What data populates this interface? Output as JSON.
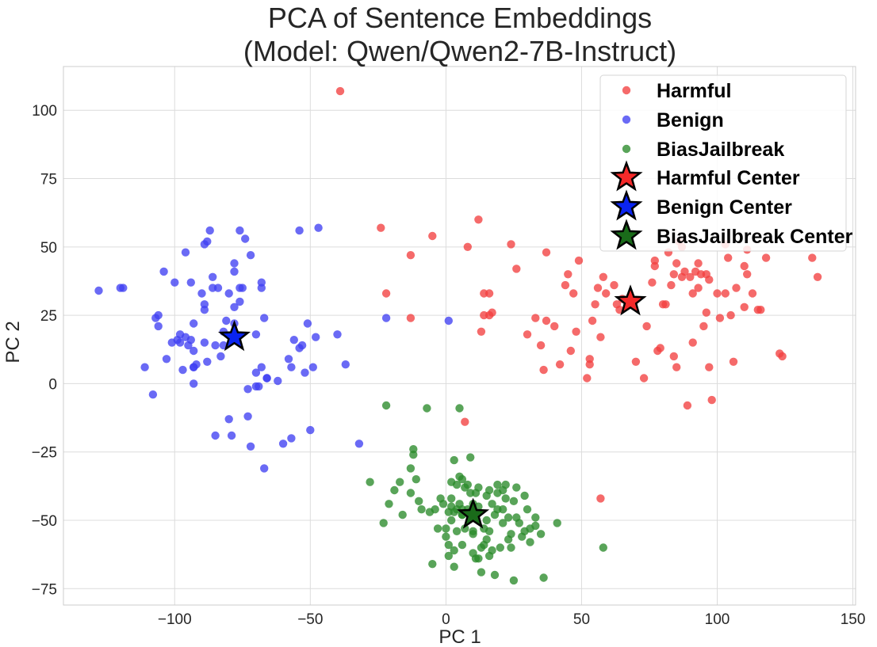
{
  "chart_data": {
    "type": "scatter",
    "title": [
      "PCA of Sentence Embeddings",
      "(Model: Qwen/Qwen2-7B-Instruct)"
    ],
    "xlabel": "PC 1",
    "ylabel": "PC 2",
    "xlim": [
      -141,
      151
    ],
    "ylim": [
      -81,
      116
    ],
    "xticks": [
      -100,
      -50,
      0,
      50,
      100,
      150
    ],
    "yticks": [
      -75,
      -50,
      -25,
      0,
      25,
      50,
      75,
      100
    ],
    "grid": true,
    "legend_position": "top-right",
    "series": [
      {
        "name": "Harmful",
        "color": "#f24040",
        "marker": "circle",
        "points": [
          [
            -39,
            107
          ],
          [
            -24,
            57
          ],
          [
            -22,
            33
          ],
          [
            -13,
            47
          ],
          [
            -13,
            24
          ],
          [
            -5,
            54
          ],
          [
            8,
            50
          ],
          [
            12,
            60
          ],
          [
            13,
            19
          ],
          [
            14,
            25
          ],
          [
            14,
            33
          ],
          [
            16,
            33
          ],
          [
            16,
            25
          ],
          [
            17,
            26
          ],
          [
            24,
            51
          ],
          [
            26,
            42
          ],
          [
            30,
            18
          ],
          [
            33,
            24
          ],
          [
            35,
            14
          ],
          [
            37,
            48
          ],
          [
            37,
            23
          ],
          [
            36,
            5
          ],
          [
            40,
            21
          ],
          [
            42,
            7
          ],
          [
            44,
            36
          ],
          [
            45,
            40
          ],
          [
            46,
            12
          ],
          [
            47,
            33
          ],
          [
            48,
            19
          ],
          [
            49,
            45
          ],
          [
            52,
            2
          ],
          [
            53,
            9
          ],
          [
            54,
            23
          ],
          [
            53,
            7
          ],
          [
            55,
            29
          ],
          [
            56,
            35
          ],
          [
            58,
            39
          ],
          [
            59,
            33
          ],
          [
            57,
            17
          ],
          [
            62,
            36
          ],
          [
            63,
            29
          ],
          [
            64,
            27
          ],
          [
            65,
            31
          ],
          [
            67,
            30
          ],
          [
            70,
            8
          ],
          [
            73,
            2
          ],
          [
            74,
            21
          ],
          [
            76,
            37
          ],
          [
            77,
            43
          ],
          [
            77,
            45
          ],
          [
            78,
            12
          ],
          [
            79,
            13
          ],
          [
            80,
            29
          ],
          [
            81,
            29
          ],
          [
            82,
            48
          ],
          [
            83,
            36
          ],
          [
            84,
            40
          ],
          [
            84,
            10
          ],
          [
            85,
            44
          ],
          [
            85,
            6
          ],
          [
            86,
            52
          ],
          [
            87,
            39
          ],
          [
            87,
            50
          ],
          [
            88,
            41
          ],
          [
            89,
            -8
          ],
          [
            90,
            39
          ],
          [
            91,
            33
          ],
          [
            91,
            15
          ],
          [
            92,
            41
          ],
          [
            93,
            44
          ],
          [
            93,
            35
          ],
          [
            94,
            40
          ],
          [
            95,
            21
          ],
          [
            96,
            26
          ],
          [
            96,
            40
          ],
          [
            97,
            38
          ],
          [
            97,
            6
          ],
          [
            98,
            -6
          ],
          [
            100,
            33
          ],
          [
            101,
            24
          ],
          [
            103,
            33
          ],
          [
            103,
            51
          ],
          [
            104,
            46
          ],
          [
            105,
            25
          ],
          [
            106,
            8
          ],
          [
            107,
            35
          ],
          [
            110,
            28
          ],
          [
            110,
            43
          ],
          [
            111,
            40
          ],
          [
            111,
            49
          ],
          [
            113,
            33
          ],
          [
            115,
            27
          ],
          [
            116,
            27
          ],
          [
            118,
            46
          ],
          [
            123,
            11
          ],
          [
            124,
            10
          ],
          [
            135,
            46
          ],
          [
            137,
            39
          ],
          [
            7,
            -14
          ],
          [
            57,
            -42
          ]
        ]
      },
      {
        "name": "Benign",
        "color": "#4040f2",
        "marker": "circle",
        "points": [
          [
            -128,
            34
          ],
          [
            -120,
            35
          ],
          [
            -119,
            35
          ],
          [
            -111,
            6
          ],
          [
            -108,
            -4
          ],
          [
            -107,
            24
          ],
          [
            -106,
            25
          ],
          [
            -106,
            21
          ],
          [
            -104,
            41
          ],
          [
            -103,
            9
          ],
          [
            -101,
            15
          ],
          [
            -100,
            37
          ],
          [
            -99,
            16
          ],
          [
            -98,
            18
          ],
          [
            -98,
            15
          ],
          [
            -97,
            5
          ],
          [
            -96,
            48
          ],
          [
            -96,
            17
          ],
          [
            -95,
            14
          ],
          [
            -94,
            37
          ],
          [
            -94,
            16
          ],
          [
            -93,
            12
          ],
          [
            -93,
            6
          ],
          [
            -93,
            6
          ],
          [
            -93,
            0
          ],
          [
            -93,
            22
          ],
          [
            -92,
            7
          ],
          [
            -90,
            33
          ],
          [
            -89,
            29
          ],
          [
            -89,
            27
          ],
          [
            -89,
            51
          ],
          [
            -89,
            15
          ],
          [
            -88,
            52
          ],
          [
            -88,
            8
          ],
          [
            -87,
            56
          ],
          [
            -86,
            35
          ],
          [
            -86,
            39
          ],
          [
            -85,
            14
          ],
          [
            -85,
            -19
          ],
          [
            -84,
            35
          ],
          [
            -83,
            10
          ],
          [
            -82,
            14
          ],
          [
            -82,
            19
          ],
          [
            -81,
            23
          ],
          [
            -80,
            -13
          ],
          [
            -80,
            33
          ],
          [
            -79,
            -19
          ],
          [
            -78,
            44
          ],
          [
            -78,
            41
          ],
          [
            -78,
            28
          ],
          [
            -78,
            22
          ],
          [
            -78,
            16
          ],
          [
            -76,
            35
          ],
          [
            -76,
            30
          ],
          [
            -76,
            56
          ],
          [
            -75,
            35
          ],
          [
            -74,
            53
          ],
          [
            -73,
            -12
          ],
          [
            -73,
            -2
          ],
          [
            -72,
            -23
          ],
          [
            -72,
            47
          ],
          [
            -70,
            4
          ],
          [
            -70,
            -1
          ],
          [
            -70,
            18
          ],
          [
            -69,
            -1
          ],
          [
            -68,
            6
          ],
          [
            -68,
            35
          ],
          [
            -68,
            37
          ],
          [
            -67,
            -31
          ],
          [
            -67,
            24
          ],
          [
            -66,
            2
          ],
          [
            -66,
            2
          ],
          [
            -62,
            1
          ],
          [
            -60,
            -22
          ],
          [
            -58,
            9
          ],
          [
            -57,
            -20
          ],
          [
            -57,
            6
          ],
          [
            -56,
            16
          ],
          [
            -54,
            13
          ],
          [
            -54,
            56
          ],
          [
            -53,
            14
          ],
          [
            -52,
            4
          ],
          [
            -51,
            22
          ],
          [
            -50,
            -17
          ],
          [
            -49,
            6
          ],
          [
            -48,
            17
          ],
          [
            -47,
            57
          ],
          [
            -40,
            18
          ],
          [
            -37,
            7
          ],
          [
            -32,
            -22
          ],
          [
            -22,
            24
          ],
          [
            1,
            23
          ]
        ]
      },
      {
        "name": "BiasJailbreak",
        "color": "#2a8a2a",
        "marker": "circle",
        "points": [
          [
            -22,
            -8
          ],
          [
            -28,
            -36
          ],
          [
            -23,
            -51
          ],
          [
            -21,
            -44
          ],
          [
            -19,
            -39
          ],
          [
            -17,
            -36
          ],
          [
            -16,
            -48
          ],
          [
            -13,
            -31
          ],
          [
            -13,
            -40
          ],
          [
            -12,
            -24
          ],
          [
            -12,
            -26
          ],
          [
            -11,
            -35
          ],
          [
            -10,
            -43
          ],
          [
            -9,
            -46
          ],
          [
            -7,
            -9
          ],
          [
            -6,
            -47
          ],
          [
            -4,
            -46
          ],
          [
            -5,
            -66
          ],
          [
            -3,
            -53
          ],
          [
            -2,
            -42
          ],
          [
            -1,
            -44
          ],
          [
            0,
            -53
          ],
          [
            0,
            -56
          ],
          [
            1,
            -59
          ],
          [
            1,
            -47
          ],
          [
            1,
            -63
          ],
          [
            2,
            -45
          ],
          [
            2,
            -50
          ],
          [
            2,
            -36
          ],
          [
            2,
            -42
          ],
          [
            3,
            -28
          ],
          [
            3,
            -47
          ],
          [
            3,
            -61
          ],
          [
            3,
            -67
          ],
          [
            4,
            -46
          ],
          [
            4,
            -54
          ],
          [
            4,
            -37
          ],
          [
            5,
            -44
          ],
          [
            5,
            -34
          ],
          [
            6,
            -35
          ],
          [
            6,
            -46
          ],
          [
            6,
            -48
          ],
          [
            6,
            -59
          ],
          [
            6,
            -48
          ],
          [
            7,
            -38
          ],
          [
            7,
            -53
          ],
          [
            8,
            -37
          ],
          [
            8,
            -46
          ],
          [
            9,
            -27
          ],
          [
            9,
            -40
          ],
          [
            10,
            -44
          ],
          [
            10,
            -54
          ],
          [
            10,
            -62
          ],
          [
            11,
            -40
          ],
          [
            11,
            -48
          ],
          [
            12,
            -64
          ],
          [
            12,
            -38
          ],
          [
            12,
            -45
          ],
          [
            13,
            -60
          ],
          [
            13,
            -69
          ],
          [
            14,
            -53
          ],
          [
            14,
            -59
          ],
          [
            15,
            -41
          ],
          [
            15,
            -50
          ],
          [
            15,
            -57
          ],
          [
            16,
            -39
          ],
          [
            16,
            -54
          ],
          [
            16,
            -63
          ],
          [
            17,
            -44
          ],
          [
            17,
            -61
          ],
          [
            18,
            -70
          ],
          [
            18,
            -48
          ],
          [
            19,
            -46
          ],
          [
            19,
            -37
          ],
          [
            19,
            -40
          ],
          [
            20,
            -60
          ],
          [
            21,
            -51
          ],
          [
            21,
            -39
          ],
          [
            21,
            -46
          ],
          [
            22,
            -37
          ],
          [
            22,
            -42
          ],
          [
            23,
            -49
          ],
          [
            23,
            -57
          ],
          [
            24,
            -55
          ],
          [
            24,
            -60
          ],
          [
            25,
            -72
          ],
          [
            25,
            -43
          ],
          [
            26,
            -38
          ],
          [
            26,
            -49
          ],
          [
            27,
            -51
          ],
          [
            28,
            -56
          ],
          [
            29,
            -41
          ],
          [
            29,
            -54
          ],
          [
            30,
            -46
          ],
          [
            31,
            -53
          ],
          [
            31,
            -58
          ],
          [
            33,
            -49
          ],
          [
            33,
            -52
          ],
          [
            35,
            -55
          ],
          [
            36,
            -71
          ],
          [
            41,
            -51
          ],
          [
            58,
            -60
          ],
          [
            5,
            -9
          ],
          [
            9,
            -47
          ],
          [
            10,
            -55
          ],
          [
            11,
            -64
          ]
        ]
      }
    ],
    "centers": [
      {
        "name": "Harmful Center",
        "color": "#f52a2a",
        "x": 68,
        "y": 30
      },
      {
        "name": "Benign Center",
        "color": "#0a24f0",
        "x": -78,
        "y": 17
      },
      {
        "name": "BiasJailbreak Center",
        "color": "#1a6b1a",
        "x": 10,
        "y": -48
      }
    ]
  }
}
